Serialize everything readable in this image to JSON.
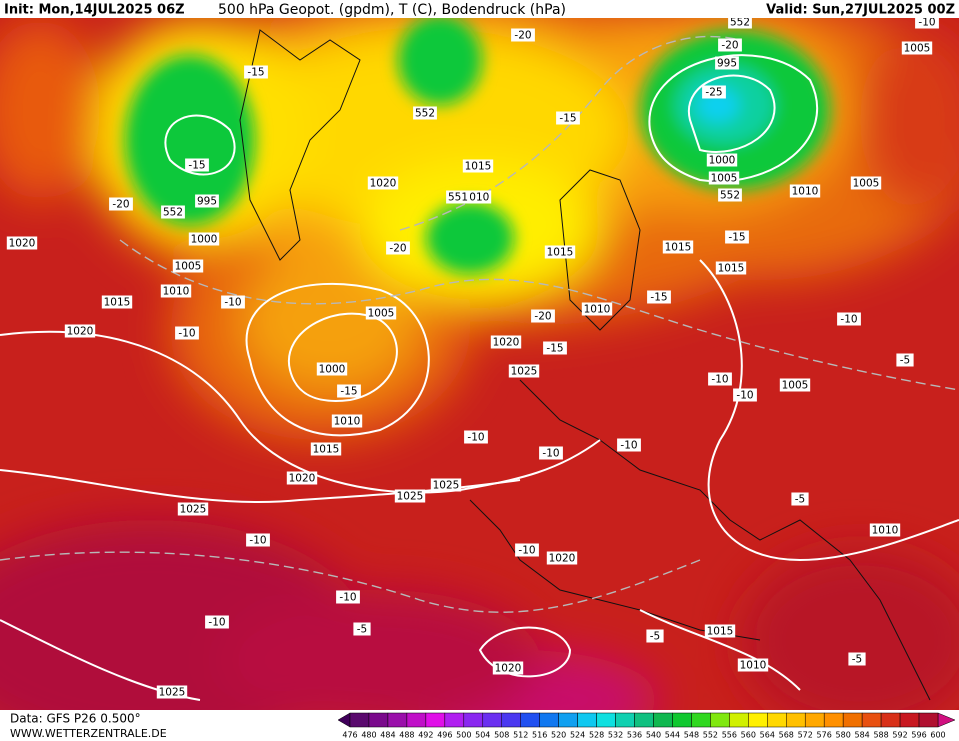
{
  "header": {
    "init": "Init: Mon,14JUL2025 06Z",
    "title": "500 hPa Geopot. (gpdm), T (C), Bodendruck (hPa)",
    "valid": "Valid: Sun,27JUL2025 00Z"
  },
  "footer": {
    "source": "Data: GFS P26 0.500°",
    "site": "WWW.WETTERZENTRALE.DE"
  },
  "colorbar": {
    "labels": [
      476,
      480,
      484,
      488,
      492,
      496,
      500,
      504,
      508,
      512,
      516,
      520,
      524,
      528,
      532,
      536,
      540,
      544,
      548,
      552,
      556,
      560,
      564,
      568,
      572,
      576,
      580,
      584,
      588,
      592,
      596,
      600
    ]
  },
  "map_labels": [
    "1020",
    "1015",
    "1020",
    "1010",
    "1005",
    "1000",
    "995",
    "-20",
    "-15",
    "-15",
    "552",
    "-10",
    "-10",
    "1005",
    "1000",
    "-15",
    "1010",
    "1015",
    "1020",
    "1025",
    "1025",
    "1025",
    "-10",
    "-10",
    "-10",
    "-5",
    "1025",
    "1020",
    "1020",
    "-10",
    "-10",
    "-10",
    "-10",
    "1025",
    "1020",
    "-15",
    "-20",
    "1010",
    "1015",
    "1015",
    "-15",
    "1015",
    "-15",
    "1010",
    "1005",
    "1005",
    "-10",
    "552",
    "1005",
    "1000",
    "995",
    "-25",
    "-20",
    "552",
    "1020",
    "1015",
    "1010",
    "551",
    "-20",
    "-15",
    "-20",
    "552",
    "-10",
    "-5",
    "-10",
    "-10",
    "1005",
    "-5",
    "1010",
    "-5",
    "1015",
    "1010",
    "-5"
  ]
}
